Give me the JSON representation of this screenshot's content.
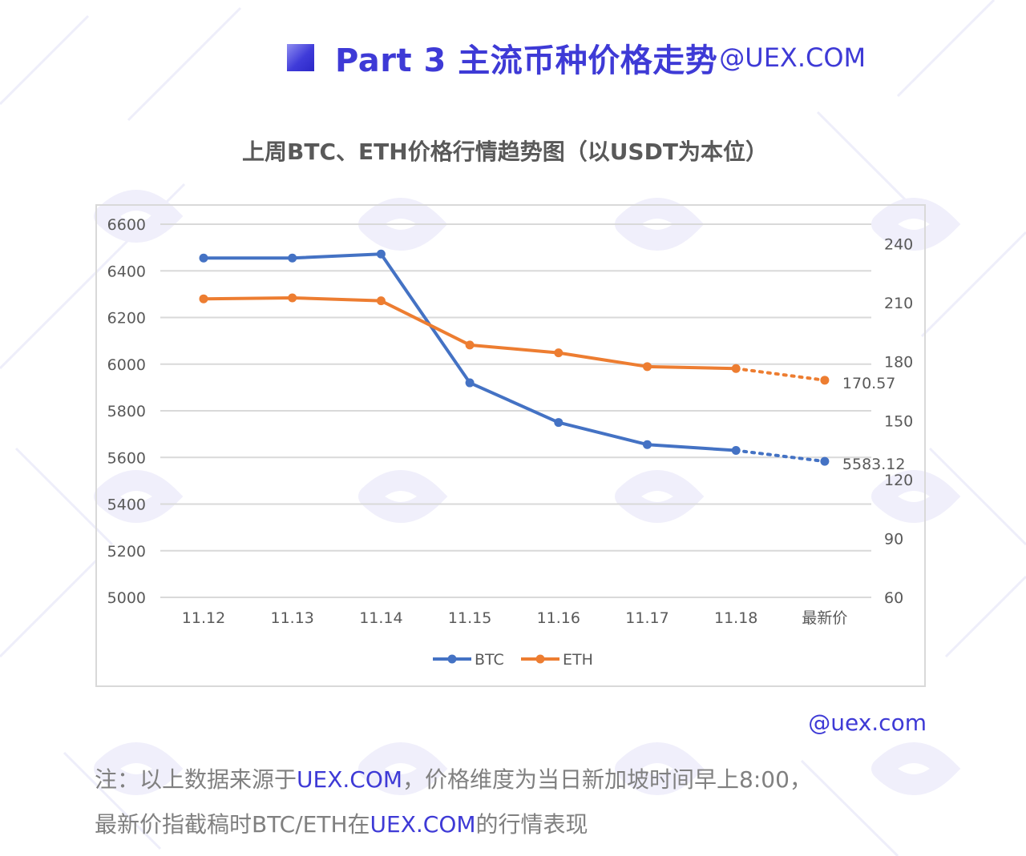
{
  "header": {
    "title": "Part 3 主流币种价格走势",
    "suffix": "@UEX.COM"
  },
  "chart_data": {
    "type": "line",
    "title": "上周BTC、ETH价格行情趋势图（以USDT为本位）",
    "categories": [
      "11.12",
      "11.13",
      "11.14",
      "11.15",
      "11.16",
      "11.17",
      "11.18",
      "最新价"
    ],
    "y_left": {
      "ylim": [
        5000,
        6600
      ],
      "ticks": [
        5000,
        5200,
        5400,
        5600,
        5800,
        6000,
        6200,
        6400,
        6600
      ]
    },
    "y_right": {
      "ylim": [
        60,
        250
      ],
      "ticks": [
        60,
        90,
        120,
        150,
        180,
        210,
        240
      ]
    },
    "series": [
      {
        "name": "BTC",
        "axis": "left",
        "color": "#4472c4",
        "values": [
          6455,
          6455,
          6472,
          5920,
          5750,
          5655,
          5630,
          5583.12
        ],
        "last_label": "5583.12"
      },
      {
        "name": "ETH",
        "axis": "right",
        "color": "#ed7d31",
        "values": [
          212,
          212.5,
          211,
          188.5,
          184.5,
          177.5,
          176.5,
          170.57
        ],
        "last_label": "170.57"
      }
    ],
    "last_segment_style": "dotted",
    "grid": "horizontal",
    "legend": "bottom"
  },
  "footer": {
    "site": "@uex.com",
    "note_line1_a": "注：以上数据来源于",
    "note_line1_link": "UEX.COM",
    "note_line1_b": "，价格维度为当日新加坡时间早上8:00，",
    "note_line2_a": "最新价指截稿时BTC/ETH在",
    "note_line2_link": "UEX.COM",
    "note_line2_b": "的行情表现"
  }
}
